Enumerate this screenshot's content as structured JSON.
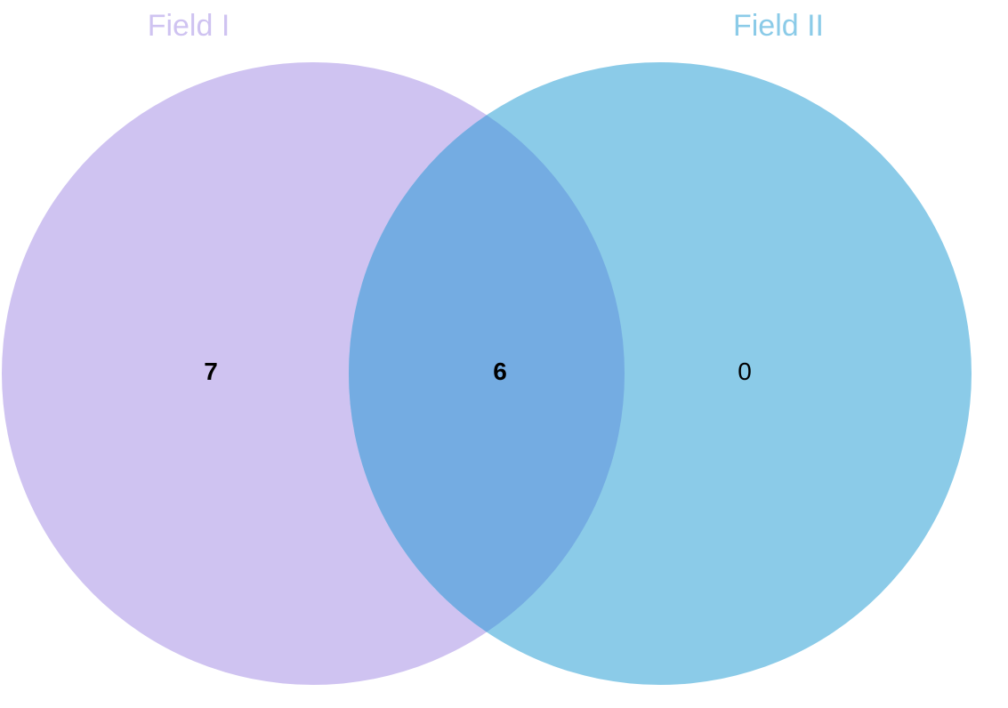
{
  "diagram": {
    "type": "venn-2",
    "sets": [
      {
        "name": "Field I",
        "color": "#cfc3f1"
      },
      {
        "name": "Field II",
        "color": "#8bcbe8"
      }
    ],
    "intersection_color": "#74ace2",
    "regions": {
      "only_a": "7",
      "both": "6",
      "only_b": "0"
    }
  }
}
